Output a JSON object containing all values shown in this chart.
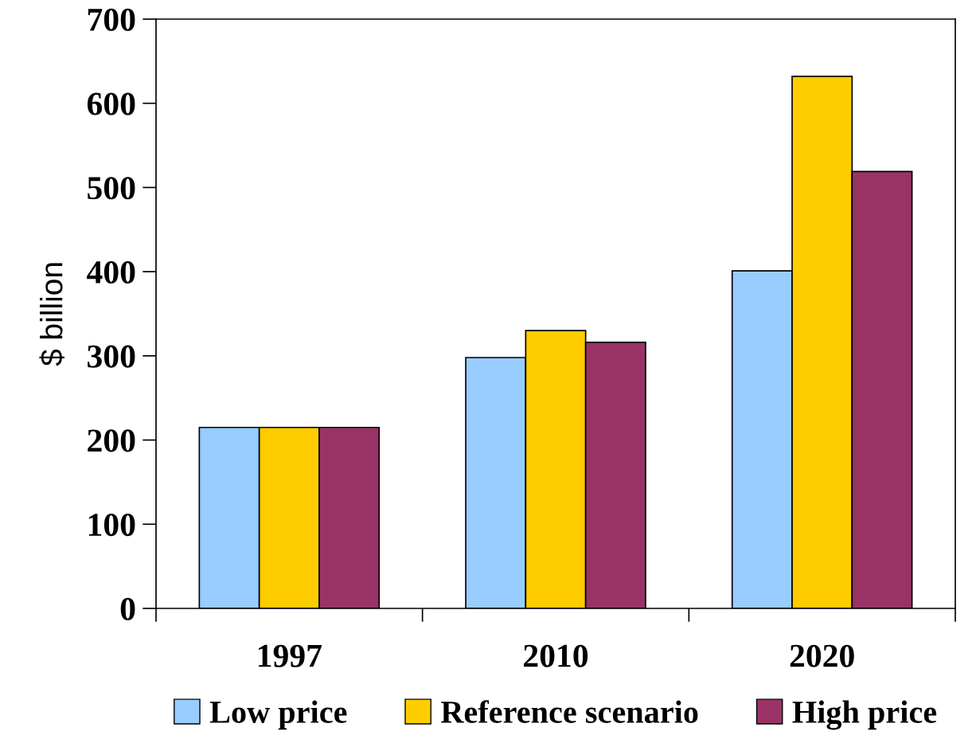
{
  "chart_data": {
    "type": "bar",
    "ylabel": "$ billion",
    "categories": [
      "1997",
      "2010",
      "2020"
    ],
    "series": [
      {
        "name": "Low price",
        "color": "#99ccff",
        "values": [
          215,
          298,
          401
        ]
      },
      {
        "name": "Reference scenario",
        "color": "#ffcc00",
        "values": [
          215,
          330,
          632
        ]
      },
      {
        "name": "High price",
        "color": "#993366",
        "values": [
          215,
          316,
          519
        ]
      }
    ],
    "ylim": [
      0,
      700
    ],
    "yticks": [
      0,
      100,
      200,
      300,
      400,
      500,
      600,
      700
    ],
    "grid": false,
    "legend": "bottom"
  }
}
